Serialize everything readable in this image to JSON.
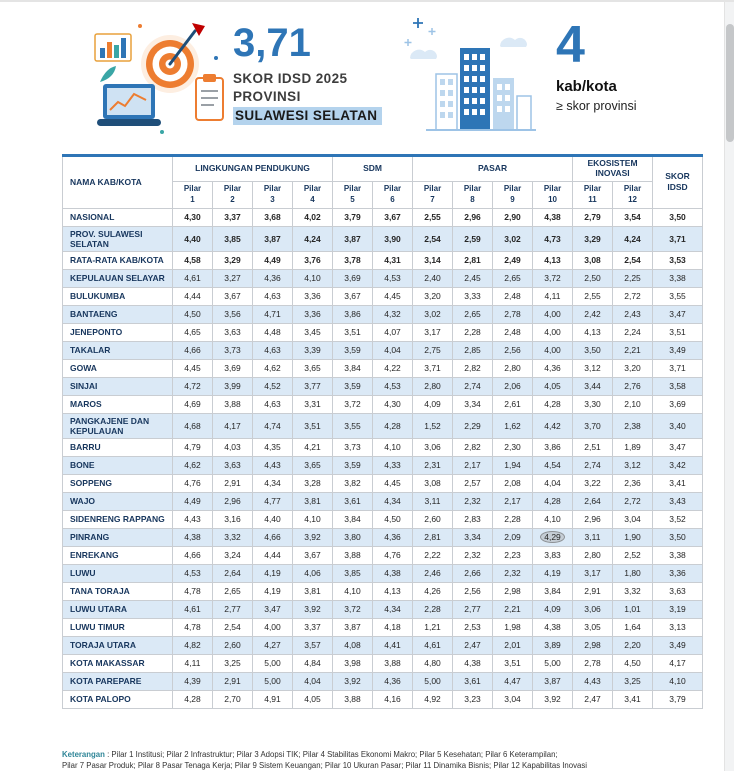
{
  "hero": {
    "score_value": "3,71",
    "score_title_line1": "SKOR IDSD 2025",
    "score_title_line2": "PROVINSI",
    "score_region": "SULAWESI SELATAN",
    "count_value": "4",
    "count_unit": "kab/kota",
    "count_condition": "≥ skor provinsi"
  },
  "table": {
    "name_header": "NAMA KAB/KOTA",
    "score_header": "SKOR IDSD",
    "groups": [
      "LINGKUNGAN PENDUKUNG",
      "SDM",
      "PASAR",
      "EKOSISTEM INOVASI"
    ],
    "pilar_headers": [
      "Pilar 1",
      "Pilar 2",
      "Pilar 3",
      "Pilar 4",
      "Pilar 5",
      "Pilar 6",
      "Pilar 7",
      "Pilar 8",
      "Pilar 9",
      "Pilar 10",
      "Pilar 11",
      "Pilar 12"
    ],
    "highlight": {
      "row_index": 17,
      "col_index": 9
    },
    "rows": [
      {
        "name": "NASIONAL",
        "bold": true,
        "values": [
          "4,30",
          "3,37",
          "3,68",
          "4,02",
          "3,79",
          "3,67",
          "2,55",
          "2,96",
          "2,90",
          "4,38",
          "2,79",
          "3,54"
        ],
        "score": "3,50"
      },
      {
        "name": "PROV. SULAWESI SELATAN",
        "bold": true,
        "values": [
          "4,40",
          "3,85",
          "3,87",
          "4,24",
          "3,87",
          "3,90",
          "2,54",
          "2,59",
          "3,02",
          "4,73",
          "3,29",
          "4,24"
        ],
        "score": "3,71"
      },
      {
        "name": "RATA-RATA KAB/KOTA",
        "bold": true,
        "values": [
          "4,58",
          "3,29",
          "4,49",
          "3,76",
          "3,78",
          "4,31",
          "3,14",
          "2,81",
          "2,49",
          "4,13",
          "3,08",
          "2,54"
        ],
        "score": "3,53"
      },
      {
        "name": "KEPULAUAN SELAYAR",
        "bold": false,
        "values": [
          "4,61",
          "3,27",
          "4,36",
          "4,10",
          "3,69",
          "4,53",
          "2,40",
          "2,45",
          "2,65",
          "3,72",
          "2,50",
          "2,25"
        ],
        "score": "3,38"
      },
      {
        "name": "BULUKUMBA",
        "bold": false,
        "values": [
          "4,44",
          "3,67",
          "4,63",
          "3,36",
          "3,67",
          "4,45",
          "3,20",
          "3,33",
          "2,48",
          "4,11",
          "2,55",
          "2,72"
        ],
        "score": "3,55"
      },
      {
        "name": "BANTAENG",
        "bold": false,
        "values": [
          "4,50",
          "3,56",
          "4,71",
          "3,36",
          "3,86",
          "4,32",
          "3,02",
          "2,65",
          "2,78",
          "4,00",
          "2,42",
          "2,43"
        ],
        "score": "3,47"
      },
      {
        "name": "JENEPONTO",
        "bold": false,
        "values": [
          "4,65",
          "3,63",
          "4,48",
          "3,45",
          "3,51",
          "4,07",
          "3,17",
          "2,28",
          "2,48",
          "4,00",
          "4,13",
          "2,24"
        ],
        "score": "3,51"
      },
      {
        "name": "TAKALAR",
        "bold": false,
        "values": [
          "4,66",
          "3,73",
          "4,63",
          "3,39",
          "3,59",
          "4,04",
          "2,75",
          "2,85",
          "2,56",
          "4,00",
          "3,50",
          "2,21"
        ],
        "score": "3,49"
      },
      {
        "name": "GOWA",
        "bold": false,
        "values": [
          "4,45",
          "3,69",
          "4,62",
          "3,65",
          "3,84",
          "4,22",
          "3,71",
          "2,82",
          "2,80",
          "4,36",
          "3,12",
          "3,20"
        ],
        "score": "3,71"
      },
      {
        "name": "SINJAI",
        "bold": false,
        "values": [
          "4,72",
          "3,99",
          "4,52",
          "3,77",
          "3,59",
          "4,53",
          "2,80",
          "2,74",
          "2,06",
          "4,05",
          "3,44",
          "2,76"
        ],
        "score": "3,58"
      },
      {
        "name": "MAROS",
        "bold": false,
        "values": [
          "4,69",
          "3,88",
          "4,63",
          "3,31",
          "3,72",
          "4,30",
          "4,09",
          "3,34",
          "2,61",
          "4,28",
          "3,30",
          "2,10"
        ],
        "score": "3,69"
      },
      {
        "name": "PANGKAJENE DAN KEPULAUAN",
        "bold": false,
        "values": [
          "4,68",
          "4,17",
          "4,74",
          "3,51",
          "3,55",
          "4,28",
          "1,52",
          "2,29",
          "1,62",
          "4,42",
          "3,70",
          "2,38"
        ],
        "score": "3,40"
      },
      {
        "name": "BARRU",
        "bold": false,
        "values": [
          "4,79",
          "4,03",
          "4,35",
          "4,21",
          "3,73",
          "4,10",
          "3,06",
          "2,82",
          "2,30",
          "3,86",
          "2,51",
          "1,89"
        ],
        "score": "3,47"
      },
      {
        "name": "BONE",
        "bold": false,
        "values": [
          "4,62",
          "3,63",
          "4,43",
          "3,65",
          "3,59",
          "4,33",
          "2,31",
          "2,17",
          "1,94",
          "4,54",
          "2,74",
          "3,12"
        ],
        "score": "3,42"
      },
      {
        "name": "SOPPENG",
        "bold": false,
        "values": [
          "4,76",
          "2,91",
          "4,34",
          "3,28",
          "3,82",
          "4,45",
          "3,08",
          "2,57",
          "2,08",
          "4,04",
          "3,22",
          "2,36"
        ],
        "score": "3,41"
      },
      {
        "name": "WAJO",
        "bold": false,
        "values": [
          "4,49",
          "2,96",
          "4,77",
          "3,81",
          "3,61",
          "4,34",
          "3,11",
          "2,32",
          "2,17",
          "4,28",
          "2,64",
          "2,72"
        ],
        "score": "3,43"
      },
      {
        "name": "SIDENRENG RAPPANG",
        "bold": false,
        "values": [
          "4,43",
          "3,16",
          "4,40",
          "4,10",
          "3,84",
          "4,50",
          "2,60",
          "2,83",
          "2,28",
          "4,10",
          "2,96",
          "3,04"
        ],
        "score": "3,52"
      },
      {
        "name": "PINRANG",
        "bold": false,
        "values": [
          "4,38",
          "3,32",
          "4,66",
          "3,92",
          "3,80",
          "4,36",
          "2,81",
          "3,34",
          "2,09",
          "4,29",
          "3,11",
          "1,90"
        ],
        "score": "3,50"
      },
      {
        "name": "ENREKANG",
        "bold": false,
        "values": [
          "4,66",
          "3,24",
          "4,44",
          "3,67",
          "3,88",
          "4,76",
          "2,22",
          "2,32",
          "2,23",
          "3,83",
          "2,80",
          "2,52"
        ],
        "score": "3,38"
      },
      {
        "name": "LUWU",
        "bold": false,
        "values": [
          "4,53",
          "2,64",
          "4,19",
          "4,06",
          "3,85",
          "4,38",
          "2,46",
          "2,66",
          "2,32",
          "4,19",
          "3,17",
          "1,80"
        ],
        "score": "3,36"
      },
      {
        "name": "TANA TORAJA",
        "bold": false,
        "values": [
          "4,78",
          "2,65",
          "4,19",
          "3,81",
          "4,10",
          "4,13",
          "4,26",
          "2,56",
          "2,98",
          "3,84",
          "2,91",
          "3,32"
        ],
        "score": "3,63"
      },
      {
        "name": "LUWU UTARA",
        "bold": false,
        "values": [
          "4,61",
          "2,77",
          "3,47",
          "3,92",
          "3,72",
          "4,34",
          "2,28",
          "2,77",
          "2,21",
          "4,09",
          "3,06",
          "1,01"
        ],
        "score": "3,19"
      },
      {
        "name": "LUWU TIMUR",
        "bold": false,
        "values": [
          "4,78",
          "2,54",
          "4,00",
          "3,37",
          "3,87",
          "4,18",
          "1,21",
          "2,53",
          "1,98",
          "4,38",
          "3,05",
          "1,64"
        ],
        "score": "3,13"
      },
      {
        "name": "TORAJA UTARA",
        "bold": false,
        "values": [
          "4,82",
          "2,60",
          "4,27",
          "3,57",
          "4,08",
          "4,41",
          "4,61",
          "2,47",
          "2,01",
          "3,89",
          "2,98",
          "2,20"
        ],
        "score": "3,49"
      },
      {
        "name": "KOTA MAKASSAR",
        "bold": false,
        "values": [
          "4,11",
          "3,25",
          "5,00",
          "4,84",
          "3,98",
          "3,88",
          "4,80",
          "4,38",
          "3,51",
          "5,00",
          "2,78",
          "4,50"
        ],
        "score": "4,17"
      },
      {
        "name": "KOTA PAREPARE",
        "bold": false,
        "values": [
          "4,39",
          "2,91",
          "5,00",
          "4,04",
          "3,92",
          "4,36",
          "5,00",
          "3,61",
          "4,47",
          "3,87",
          "4,43",
          "3,25"
        ],
        "score": "4,10"
      },
      {
        "name": "KOTA PALOPO",
        "bold": false,
        "values": [
          "4,28",
          "2,70",
          "4,91",
          "4,05",
          "3,88",
          "4,16",
          "4,92",
          "3,23",
          "3,04",
          "3,92",
          "2,47",
          "3,41"
        ],
        "score": "3,79"
      }
    ]
  },
  "footer": {
    "label": "Keterangan",
    "text_line1": ": Pilar 1 Institusi; Pilar 2 Infrastruktur; Pilar 3 Adopsi TIK; Pilar 4 Stabilitas Ekonomi Makro; Pilar 5 Kesehatan; Pilar 6 Keterampilan;",
    "text_line2": "Pilar 7 Pasar Produk; Pilar 8 Pasar Tenaga Kerja; Pilar 9 Sistem Keuangan; Pilar 10 Ukuran Pasar; Pilar 11 Dinamika Bisnis; Pilar 12 Kapabilitas Inovasi"
  },
  "colors": {
    "accent_blue": "#2e75b6",
    "row_alt": "#dbe9f6",
    "header_text": "#17365d",
    "region_highlight_bg": "#b4d3ed"
  }
}
